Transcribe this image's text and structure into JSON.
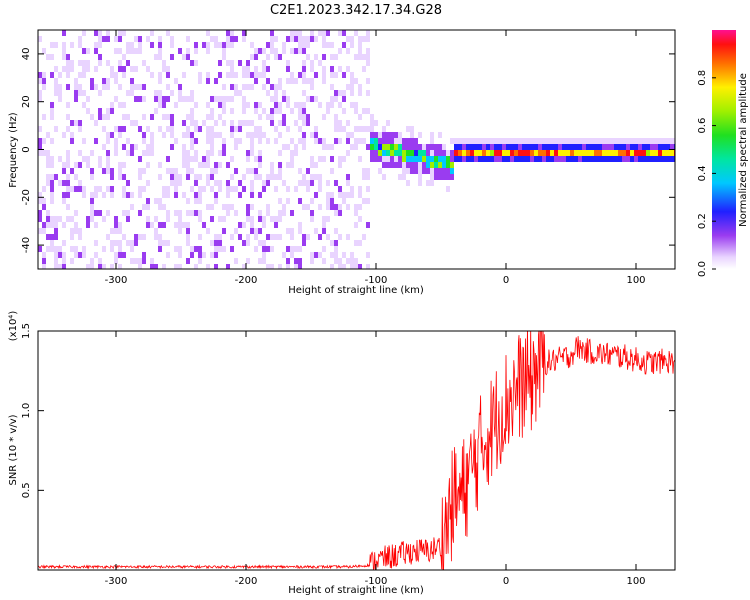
{
  "title": "C2E1.2023.342.17.34.G28",
  "chart_data": [
    {
      "type": "heatmap",
      "xlabel": "Height of straight line (km)",
      "ylabel": "Frequency (Hz)",
      "xlim": [
        -360,
        130
      ],
      "ylim": [
        -50,
        50
      ],
      "xticks": [
        -300,
        -200,
        -100,
        0,
        100
      ],
      "yticks": [
        -40,
        -20,
        0,
        20,
        40
      ],
      "colorbar": {
        "label": "Normalized spectral amplitude",
        "range": [
          0.0,
          1.0
        ],
        "ticks": [
          "0.0",
          "0.2",
          "0.4",
          "0.6",
          "0.8"
        ],
        "colormap": "rainbow (white-violet-blue-cyan-green-yellow-red-magenta)"
      },
      "regions": [
        {
          "x_range": [
            -360,
            -105
          ],
          "freq_range": [
            -50,
            50
          ],
          "amplitude": "low (0.1-0.3), noise"
        },
        {
          "x_range": [
            -120,
            -40
          ],
          "freq_center_start": 5,
          "freq_center_end": -6,
          "amplitude": "0.3-0.8"
        },
        {
          "x_range": [
            -40,
            130
          ],
          "freq_center": 0,
          "bandwidth_hz": 5,
          "amplitude": "high (0.6-1.0)"
        }
      ]
    },
    {
      "type": "line",
      "xlabel": "Height of straight line (km)",
      "ylabel": "SNR (10 * v/v)",
      "y_multiplier": "(x10⁴)",
      "xlim": [
        -360,
        130
      ],
      "ylim": [
        0,
        1.5
      ],
      "xticks": [
        -300,
        -200,
        -100,
        0,
        100
      ],
      "yticks": [
        "0.5",
        "1.0",
        "1.5"
      ],
      "series": [
        {
          "color": "#ff0000",
          "x": [
            -360,
            -300,
            -200,
            -120,
            -105,
            -100,
            -90,
            -80,
            -70,
            -60,
            -50,
            -45,
            -40,
            -35,
            -30,
            -25,
            -20,
            -15,
            -10,
            -5,
            0,
            5,
            10,
            15,
            20,
            25,
            30,
            40,
            50,
            55,
            60,
            70,
            80,
            90,
            100,
            110,
            120,
            130
          ],
          "y": [
            0.02,
            0.02,
            0.02,
            0.02,
            0.03,
            0.06,
            0.08,
            0.1,
            0.12,
            0.12,
            0.15,
            0.3,
            0.45,
            0.45,
            0.55,
            0.65,
            0.75,
            0.85,
            0.9,
            1.0,
            1.05,
            1.1,
            1.15,
            1.18,
            1.2,
            1.28,
            1.3,
            1.32,
            1.35,
            1.4,
            1.38,
            1.36,
            1.35,
            1.34,
            1.32,
            1.3,
            1.31,
            1.31
          ]
        }
      ]
    }
  ]
}
